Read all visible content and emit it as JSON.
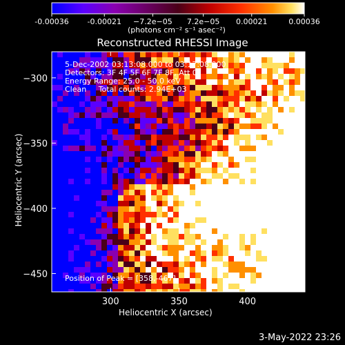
{
  "colorbar": {
    "tick_labels": [
      "-0.00036",
      "-0.00021",
      "−7.2e−05",
      "7.2e−05",
      "0.00021",
      "0.00036"
    ],
    "tick_values": [
      -0.00036,
      -0.00021,
      -7.2e-05,
      7.2e-05,
      0.00021,
      0.00036
    ],
    "range": [
      -0.00036,
      0.00036
    ],
    "units_label": "(photons cm⁻² s⁻¹ asec⁻²)",
    "colors": [
      "#0000ff",
      "#5a00ff",
      "#8a00b0",
      "#4a0018",
      "#c00000",
      "#ff3000",
      "#ff9000",
      "#ffe060",
      "#ffffff"
    ]
  },
  "chart_data": {
    "type": "heatmap",
    "title": "Reconstructed RHESSI Image",
    "xlabel": "Heliocentric X (arcsec)",
    "ylabel": "Heliocentric Y (arcsec)",
    "xlim": [
      257,
      442
    ],
    "ylim": [
      -464,
      -280
    ],
    "x_ticks": [
      300,
      350,
      400
    ],
    "y_ticks": [
      -300,
      -350,
      -400,
      -450
    ],
    "x_tick_labels": [
      "300",
      "350",
      "400"
    ],
    "y_tick_labels": [
      "−300",
      "−350",
      "−400",
      "−450"
    ],
    "annotations": [
      "5-Dec-2002 03:13:08.000 to 03:17:08.000",
      "Detectors: 3F 4F 5F 6F 7F 8F, Att 0",
      "Energy Range: 25.0 - 50.0 keV",
      "Clean     Total counts: 2.94E+03"
    ],
    "peak_label": "Position of Peak = [358,-467]",
    "peak_position": [
      358,
      -467
    ],
    "grid": false
  },
  "timestamp": "3-May-2022 23:26"
}
